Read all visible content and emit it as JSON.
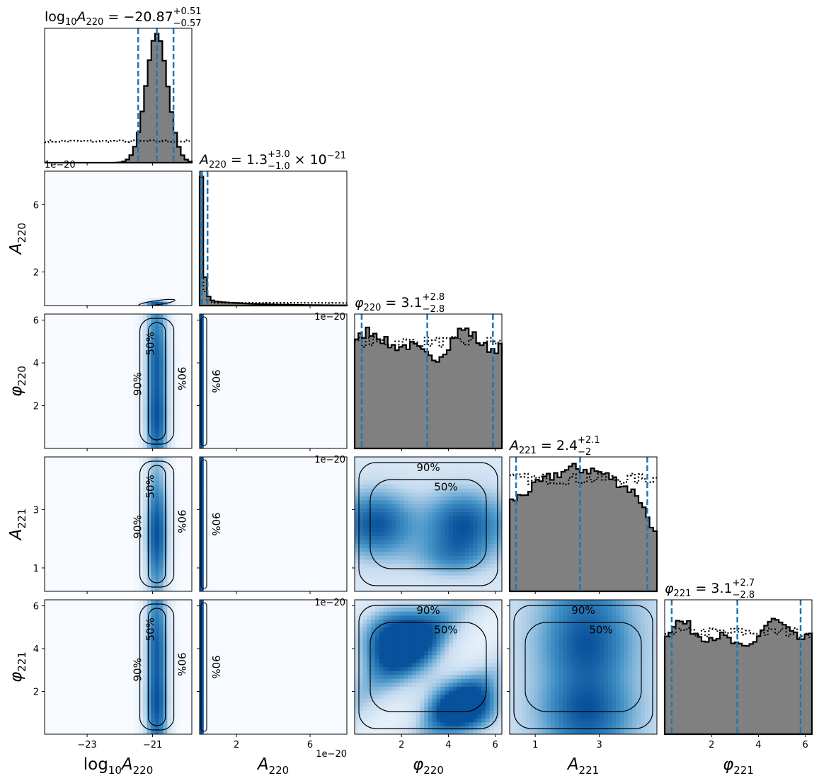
{
  "chart_data": {
    "type": "corner",
    "parameters": [
      {
        "key": "logA220",
        "axis_label_base": "log",
        "axis_label_sub": "10",
        "axis_label_sym": "A",
        "axis_label_sym_sub": "220",
        "title_lhs": "log10A220",
        "median": "−20.87",
        "upper": "+0.51",
        "lower": "−0.57",
        "suffix": "",
        "range": [
          -24.3,
          -19.8
        ],
        "ticks": [
          -23,
          -21
        ],
        "tick_labels": [
          "−23",
          "−21"
        ],
        "offset_text": ""
      },
      {
        "key": "A220",
        "axis_label_sym": "A",
        "axis_label_sym_sub": "220",
        "title_lhs": "A220",
        "median": "1.3",
        "upper": "+3.0",
        "lower": "−1.0",
        "suffix": "× 10−21",
        "range": [
          0.0,
          8.0
        ],
        "ticks": [
          2,
          6
        ],
        "tick_labels": [
          "2",
          "6"
        ],
        "offset_text": "1e−20"
      },
      {
        "key": "phi220",
        "axis_label_sym": "φ",
        "axis_label_sym_sub": "220",
        "title_lhs": "φ220",
        "median": "3.1",
        "upper": "+2.8",
        "lower": "−2.8",
        "suffix": "",
        "range": [
          0.0,
          6.283
        ],
        "ticks": [
          2,
          4,
          6
        ],
        "tick_labels": [
          "2",
          "4",
          "6"
        ],
        "offset_text": ""
      },
      {
        "key": "A221",
        "axis_label_sym": "A",
        "axis_label_sym_sub": "221",
        "title_lhs": "A221",
        "median": "2.4",
        "upper": "+2.1",
        "lower": "−2",
        "suffix": "",
        "range": [
          0.2,
          4.8
        ],
        "ticks": [
          1,
          3
        ],
        "tick_labels": [
          "1",
          "3"
        ],
        "offset_text": ""
      },
      {
        "key": "phi221",
        "axis_label_sym": "φ",
        "axis_label_sym_sub": "221",
        "title_lhs": "φ221",
        "median": "3.1",
        "upper": "+2.7",
        "lower": "−2.8",
        "suffix": "",
        "range": [
          0.0,
          6.283
        ],
        "ticks": [
          2,
          4,
          6
        ],
        "tick_labels": [
          "2",
          "4",
          "6"
        ],
        "offset_text": ""
      }
    ],
    "diagonal": [
      {
        "quantiles": [
          -21.44,
          -20.87,
          -20.36
        ],
        "posterior": {
          "type": "gaussian",
          "mu": -20.87,
          "sigma": 0.33
        },
        "prior": "flat"
      },
      {
        "quantiles": [
          0.03,
          0.13,
          0.43
        ],
        "posterior": {
          "type": "decay"
        },
        "prior": "decay"
      },
      {
        "quantiles": [
          0.3,
          3.1,
          5.9
        ],
        "posterior": {
          "type": "flat-wavy"
        },
        "prior": "flat"
      },
      {
        "quantiles": [
          0.4,
          2.4,
          4.5
        ],
        "posterior": {
          "type": "hump",
          "peak": 2.4
        },
        "prior": "flat"
      },
      {
        "quantiles": [
          0.3,
          3.1,
          5.8
        ],
        "posterior": {
          "type": "flat-wavy"
        },
        "prior": "flat"
      }
    ],
    "contour_levels": [
      "50%",
      "90%"
    ],
    "colors": {
      "hist_fill": "#808080",
      "hist_edge": "#000000",
      "quantile": "#1f77b4",
      "density_low": "#f7fbff",
      "density_high": "#08306b"
    }
  }
}
